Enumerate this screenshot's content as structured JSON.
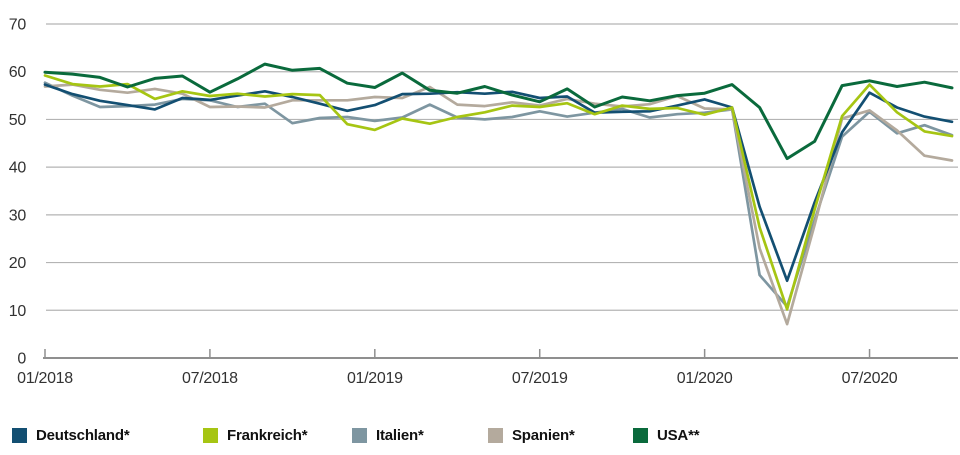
{
  "chart_data": {
    "type": "line",
    "title": "",
    "xlabel": "",
    "ylabel": "",
    "ylim": [
      0,
      70
    ],
    "y_ticks": [
      0,
      10,
      20,
      30,
      40,
      50,
      60,
      70
    ],
    "grid": "horizontal",
    "legend_position": "bottom",
    "n_points": 34,
    "x_start": "01/2018",
    "x_end": "10/2020",
    "x_tick_labels": [
      "01/2018",
      "07/2018",
      "01/2019",
      "07/2019",
      "01/2020",
      "07/2020"
    ],
    "x_tick_month_indices": [
      0,
      6,
      12,
      18,
      24,
      30
    ],
    "series": [
      {
        "name": "Deutschland*",
        "color": "#134f72",
        "values": [
          57.3,
          55.3,
          53.9,
          53.0,
          52.1,
          54.5,
          54.1,
          55.0,
          55.9,
          54.7,
          53.3,
          51.8,
          53.0,
          55.3,
          55.4,
          55.7,
          55.4,
          55.8,
          54.5,
          54.8,
          51.4,
          51.6,
          51.7,
          52.9,
          54.2,
          52.5,
          31.7,
          16.2,
          32.6,
          47.3,
          55.6,
          52.5,
          50.6,
          49.5
        ]
      },
      {
        "name": "Frankreich*",
        "color": "#a6c513",
        "values": [
          59.2,
          57.4,
          56.9,
          57.4,
          54.3,
          55.9,
          54.9,
          55.4,
          54.8,
          55.3,
          55.1,
          49.0,
          47.8,
          50.2,
          49.1,
          50.5,
          51.5,
          52.9,
          52.6,
          53.4,
          51.1,
          52.9,
          52.2,
          52.4,
          51.0,
          52.5,
          27.4,
          10.2,
          31.1,
          50.7,
          57.3,
          51.5,
          47.5,
          46.5
        ]
      },
      {
        "name": "Italien*",
        "color": "#7e96a1",
        "values": [
          57.7,
          55.0,
          52.6,
          52.8,
          53.1,
          54.3,
          54.0,
          52.6,
          53.3,
          49.2,
          50.3,
          50.5,
          49.7,
          50.4,
          53.1,
          50.4,
          50.0,
          50.5,
          51.7,
          50.6,
          51.4,
          52.2,
          50.4,
          51.1,
          51.4,
          52.1,
          17.4,
          10.8,
          28.9,
          46.4,
          51.6,
          47.1,
          48.8,
          46.7
        ]
      },
      {
        "name": "Spanien*",
        "color": "#b4aa9d",
        "values": [
          56.9,
          57.3,
          56.2,
          55.6,
          56.4,
          55.4,
          52.6,
          52.7,
          52.5,
          54.0,
          54.0,
          54.0,
          54.7,
          54.5,
          56.8,
          53.1,
          52.8,
          53.6,
          52.9,
          54.3,
          53.3,
          52.7,
          53.2,
          54.9,
          52.3,
          52.1,
          23.0,
          7.1,
          27.9,
          50.2,
          51.9,
          47.7,
          42.4,
          41.4
        ]
      },
      {
        "name": "USA**",
        "color": "#0a6a3c",
        "values": [
          59.9,
          59.5,
          58.8,
          56.8,
          58.6,
          59.1,
          55.7,
          58.5,
          61.6,
          60.3,
          60.7,
          57.6,
          56.7,
          59.7,
          56.1,
          55.5,
          56.9,
          55.1,
          53.7,
          56.4,
          52.6,
          54.7,
          53.9,
          55.0,
          55.5,
          57.3,
          52.5,
          41.8,
          45.4,
          57.1,
          58.1,
          56.9,
          57.8,
          56.6
        ]
      }
    ],
    "colors": {
      "gridline": "#b4b4b4",
      "axis": "#8f8f8f",
      "tick_label": "#323232"
    }
  }
}
